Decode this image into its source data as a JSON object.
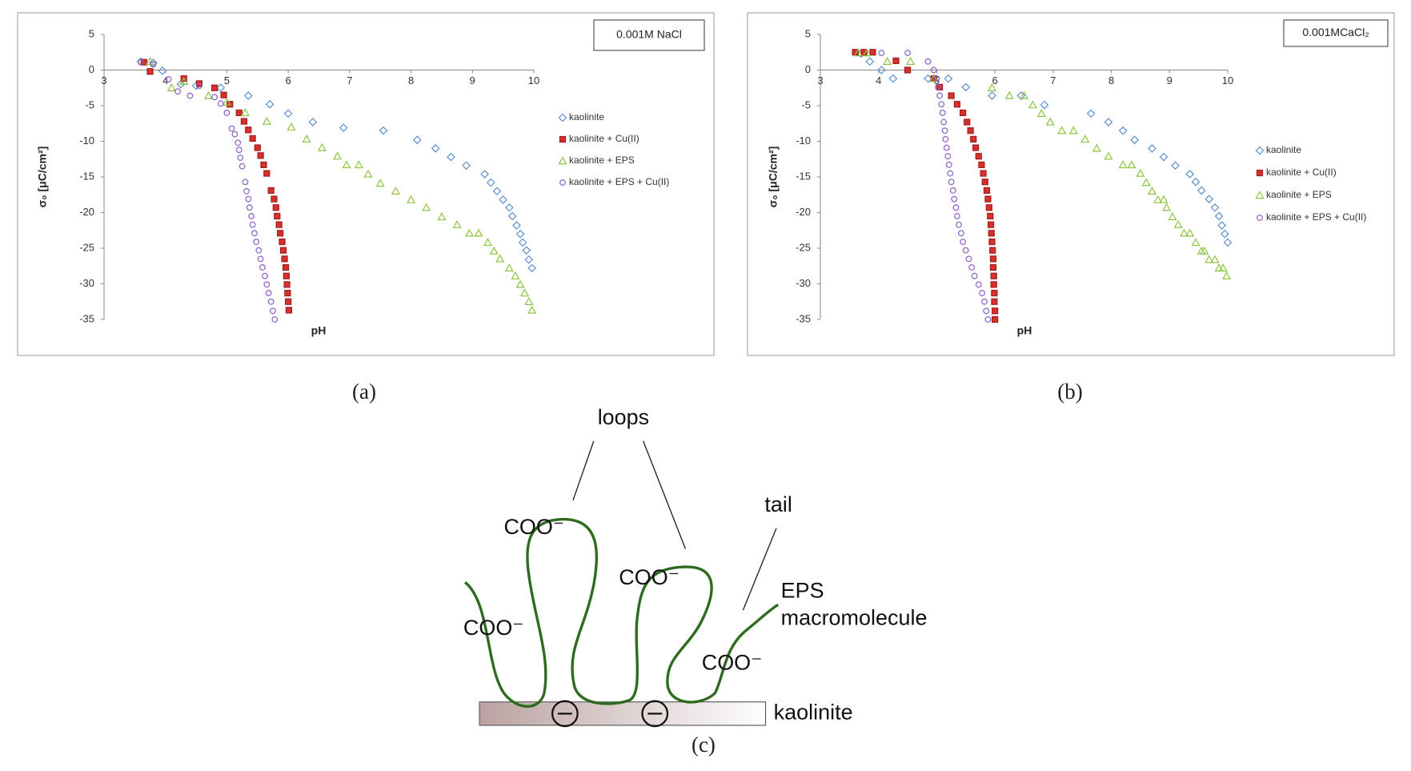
{
  "chart_data": [
    {
      "type": "scatter",
      "annotation": "0.001M NaCl",
      "x_label": "pH",
      "y_label": "σ₀ [μC/cm²]",
      "xlim": [
        3,
        10
      ],
      "ylim": [
        -35,
        5
      ],
      "xticks": [
        3,
        4,
        5,
        6,
        7,
        8,
        9,
        10
      ],
      "yticks": [
        5,
        0,
        -5,
        -10,
        -15,
        -20,
        -25,
        -30,
        -35
      ],
      "grid": false,
      "legend": "right",
      "series": [
        {
          "name": "kaolinite",
          "color": "#5b8fd0",
          "marker": "diamond",
          "x": [
            3.6,
            3.8,
            3.95,
            4.25,
            4.5,
            4.9,
            5.35,
            5.7,
            6.0,
            6.4,
            6.9,
            7.55,
            8.1,
            8.4,
            8.65,
            8.9,
            9.2,
            9.3,
            9.4,
            9.5,
            9.6,
            9.65,
            9.72,
            9.78,
            9.82,
            9.88,
            9.92,
            9.97
          ],
          "values": [
            1.2,
            1.0,
            -0.1,
            -2.0,
            -2.2,
            -2.5,
            -3.6,
            -4.8,
            -6.1,
            -7.3,
            -8.1,
            -8.5,
            -9.8,
            -11.0,
            -12.2,
            -13.4,
            -14.6,
            -15.8,
            -17.0,
            -18.2,
            -19.3,
            -20.5,
            -21.8,
            -23.0,
            -24.2,
            -25.3,
            -26.6,
            -27.8
          ]
        },
        {
          "name": "kaolinite + Cu(II)",
          "color": "#d9302c",
          "marker": "square",
          "x": [
            3.65,
            3.75,
            4.3,
            4.55,
            4.8,
            4.95,
            5.05,
            5.2,
            5.28,
            5.35,
            5.42,
            5.5,
            5.55,
            5.6,
            5.65,
            5.72,
            5.77,
            5.8,
            5.82,
            5.85,
            5.87,
            5.9,
            5.92,
            5.94,
            5.96,
            5.97,
            5.98,
            5.99,
            6.0,
            6.01
          ],
          "values": [
            1.1,
            -0.2,
            -1.2,
            -1.9,
            -2.5,
            -3.5,
            -4.8,
            -6.0,
            -7.2,
            -8.4,
            -9.6,
            -10.9,
            -12.0,
            -13.3,
            -14.5,
            -16.9,
            -18.1,
            -19.3,
            -20.5,
            -21.7,
            -22.9,
            -24.1,
            -25.3,
            -26.5,
            -27.7,
            -28.9,
            -30.1,
            -31.3,
            -32.5,
            -33.7
          ]
        },
        {
          "name": "kaolinite + EPS",
          "color": "#8cc43f",
          "marker": "triangle",
          "x": [
            3.75,
            4.1,
            4.3,
            4.7,
            5.0,
            5.3,
            5.65,
            6.05,
            6.3,
            6.55,
            6.8,
            6.95,
            7.15,
            7.3,
            7.5,
            7.75,
            8.0,
            8.25,
            8.5,
            8.75,
            8.95,
            9.1,
            9.25,
            9.35,
            9.45,
            9.6,
            9.7,
            9.78,
            9.85,
            9.92,
            9.97
          ],
          "values": [
            1.2,
            -2.5,
            -1.6,
            -3.6,
            -4.5,
            -6.0,
            -7.2,
            -8.0,
            -9.7,
            -10.9,
            -12.1,
            -13.3,
            -13.3,
            -14.6,
            -15.9,
            -17.0,
            -18.2,
            -19.3,
            -20.6,
            -21.7,
            -22.9,
            -22.9,
            -24.2,
            -25.4,
            -26.5,
            -27.8,
            -28.9,
            -30.1,
            -31.3,
            -32.5,
            -33.7
          ]
        },
        {
          "name": "kaolinite + EPS + Cu(II)",
          "color": "#8a5ec9",
          "marker": "circle",
          "x": [
            3.6,
            3.8,
            4.05,
            4.2,
            4.4,
            4.55,
            4.8,
            4.9,
            5.0,
            5.08,
            5.13,
            5.18,
            5.2,
            5.22,
            5.25,
            5.3,
            5.32,
            5.35,
            5.37,
            5.4,
            5.42,
            5.45,
            5.48,
            5.52,
            5.55,
            5.58,
            5.62,
            5.65,
            5.68,
            5.72,
            5.75,
            5.78
          ],
          "values": [
            1.1,
            0.8,
            -1.3,
            -3.0,
            -3.6,
            -2.2,
            -3.8,
            -4.7,
            -6.0,
            -8.2,
            -9.0,
            -10.2,
            -11.2,
            -12.3,
            -13.5,
            -15.7,
            -17.0,
            -18.1,
            -19.3,
            -20.5,
            -21.7,
            -22.9,
            -24.1,
            -25.3,
            -26.5,
            -27.7,
            -28.9,
            -30.1,
            -31.3,
            -32.5,
            -33.8,
            -35.0
          ]
        }
      ]
    },
    {
      "type": "scatter",
      "annotation": "0.001MCaCl₂",
      "x_label": "pH",
      "y_label": "σ₀ [μC/cm²]",
      "xlim": [
        3,
        10
      ],
      "ylim": [
        -35,
        5
      ],
      "xticks": [
        3,
        4,
        5,
        6,
        7,
        8,
        9,
        10
      ],
      "yticks": [
        5,
        0,
        -5,
        -10,
        -15,
        -20,
        -25,
        -30,
        -35
      ],
      "grid": false,
      "legend": "right",
      "series": [
        {
          "name": "kaolinite",
          "color": "#5b8fd0",
          "marker": "diamond",
          "x": [
            3.7,
            3.85,
            4.05,
            4.25,
            4.85,
            5.2,
            5.5,
            5.95,
            6.45,
            6.85,
            7.65,
            7.95,
            8.2,
            8.4,
            8.7,
            8.9,
            9.1,
            9.35,
            9.45,
            9.55,
            9.68,
            9.78,
            9.85,
            9.9,
            9.95,
            10.0
          ],
          "values": [
            2.3,
            1.2,
            0.0,
            -1.2,
            -1.2,
            -1.2,
            -2.4,
            -3.6,
            -3.6,
            -4.9,
            -6.1,
            -7.3,
            -8.5,
            -9.8,
            -11.0,
            -12.2,
            -13.4,
            -14.6,
            -15.7,
            -16.9,
            -18.1,
            -19.3,
            -20.5,
            -21.8,
            -23.0,
            -24.2
          ]
        },
        {
          "name": "kaolinite + Cu(II)",
          "color": "#d9302c",
          "marker": "square",
          "x": [
            3.6,
            3.75,
            3.9,
            4.3,
            4.5,
            4.95,
            5.05,
            5.25,
            5.35,
            5.45,
            5.52,
            5.58,
            5.63,
            5.67,
            5.72,
            5.77,
            5.8,
            5.83,
            5.86,
            5.88,
            5.9,
            5.92,
            5.93,
            5.94,
            5.95,
            5.96,
            5.97,
            5.97,
            5.98,
            5.98,
            5.99,
            5.99,
            6.0,
            6.0
          ],
          "values": [
            2.5,
            2.5,
            2.5,
            1.3,
            0.0,
            -1.2,
            -2.4,
            -3.6,
            -4.8,
            -6.0,
            -7.3,
            -8.5,
            -9.7,
            -10.9,
            -12.1,
            -13.3,
            -14.5,
            -15.7,
            -16.9,
            -18.1,
            -19.3,
            -20.5,
            -21.7,
            -22.9,
            -24.1,
            -25.3,
            -26.5,
            -27.7,
            -28.9,
            -30.1,
            -31.3,
            -32.5,
            -33.8,
            -35.0
          ]
        },
        {
          "name": "kaolinite + EPS",
          "color": "#8cc43f",
          "marker": "triangle",
          "x": [
            3.65,
            3.8,
            4.15,
            4.55,
            4.95,
            5.95,
            6.25,
            6.5,
            6.65,
            6.8,
            6.95,
            7.15,
            7.35,
            7.55,
            7.75,
            7.95,
            8.2,
            8.35,
            8.5,
            8.6,
            8.7,
            8.8,
            8.9,
            8.95,
            9.05,
            9.15,
            9.25,
            9.35,
            9.45,
            9.55,
            9.6,
            9.68,
            9.78,
            9.85,
            9.92,
            9.98
          ],
          "values": [
            2.4,
            2.4,
            1.2,
            1.2,
            -1.2,
            -2.5,
            -3.6,
            -3.6,
            -4.9,
            -6.1,
            -7.3,
            -8.5,
            -8.5,
            -9.7,
            -11.0,
            -12.1,
            -13.3,
            -13.3,
            -14.5,
            -15.8,
            -17.0,
            -18.2,
            -18.2,
            -19.3,
            -20.6,
            -21.7,
            -22.9,
            -22.9,
            -24.2,
            -25.4,
            -25.4,
            -26.6,
            -26.6,
            -27.8,
            -27.8,
            -28.9
          ]
        },
        {
          "name": "kaolinite + EPS + Cu(II)",
          "color": "#8a5ec9",
          "marker": "circle",
          "x": [
            4.05,
            4.5,
            4.85,
            4.95,
            5.0,
            5.02,
            5.05,
            5.08,
            5.1,
            5.12,
            5.14,
            5.15,
            5.17,
            5.19,
            5.21,
            5.23,
            5.25,
            5.28,
            5.3,
            5.33,
            5.35,
            5.38,
            5.42,
            5.45,
            5.5,
            5.55,
            5.6,
            5.65,
            5.72,
            5.78,
            5.82,
            5.85,
            5.88
          ],
          "values": [
            2.4,
            2.4,
            1.2,
            0.0,
            -1.2,
            -2.4,
            -3.6,
            -4.8,
            -6.0,
            -7.3,
            -8.5,
            -9.7,
            -10.9,
            -12.1,
            -13.3,
            -14.5,
            -15.7,
            -16.9,
            -18.1,
            -19.3,
            -20.5,
            -21.7,
            -22.9,
            -24.1,
            -25.3,
            -26.5,
            -27.7,
            -28.9,
            -30.1,
            -31.3,
            -32.5,
            -33.8,
            -35.0
          ]
        }
      ]
    }
  ],
  "panel_labels": [
    "(a)",
    "(b)",
    "(c)"
  ],
  "diagram": {
    "loops": "loops",
    "tail": "tail",
    "eps": [
      "EPS",
      "macromolecule"
    ],
    "surface": "kaolinite",
    "groups": [
      "COO⁻",
      "COO⁻",
      "COO⁻",
      "COO⁻"
    ]
  }
}
